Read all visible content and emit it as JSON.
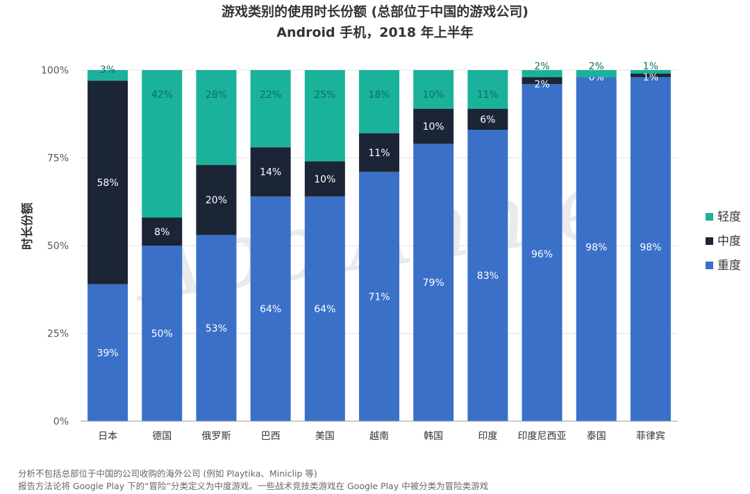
{
  "chart_data": {
    "type": "bar",
    "stacked": true,
    "title": "游戏类别的使用时长份额 (总部位于中国的游戏公司)",
    "subtitle": "Android 手机，2018 年上半年",
    "ylabel": "时长份额",
    "xlabel": "",
    "ylim": [
      0,
      100
    ],
    "yticks": [
      "0%",
      "25%",
      "50%",
      "75%",
      "100%"
    ],
    "ytick_values": [
      0,
      25,
      50,
      75,
      100
    ],
    "categories": [
      "日本",
      "德国",
      "俄罗斯",
      "巴西",
      "美国",
      "越南",
      "韩国",
      "印度",
      "印度尼西亚",
      "泰国",
      "菲律宾"
    ],
    "series": [
      {
        "name": "重度",
        "color": "#3a70c8",
        "values": [
          39,
          50,
          53,
          64,
          64,
          71,
          79,
          83,
          96,
          98,
          98
        ],
        "labels": [
          "39%",
          "50%",
          "53%",
          "64%",
          "64%",
          "71%",
          "79%",
          "83%",
          "96%",
          "98%",
          "98%"
        ]
      },
      {
        "name": "中度",
        "color": "#1b2535",
        "values": [
          58,
          8,
          20,
          14,
          10,
          11,
          10,
          6,
          2,
          0,
          1
        ],
        "labels": [
          "58%",
          "8%",
          "20%",
          "14%",
          "10%",
          "11%",
          "10%",
          "6%",
          "2%",
          "0%",
          "1%"
        ]
      },
      {
        "name": "轻度",
        "color": "#1ab29a",
        "values": [
          3,
          42,
          28,
          22,
          25,
          18,
          10,
          11,
          2,
          2,
          1
        ],
        "labels": [
          "3%",
          "42%",
          "28%",
          "22%",
          "25%",
          "18%",
          "10%",
          "11%",
          "2%",
          "2%",
          "1%"
        ]
      }
    ],
    "legend_order": [
      "轻度",
      "中度",
      "重度"
    ],
    "legend_position": "right",
    "grid": true,
    "watermark": "App Annie"
  },
  "notes": [
    "分析不包括总部位于中国的公司收购的海外公司 (例如 Playtika、Miniclip 等)",
    "报告方法论将 Google Play 下的“冒险”分类定义为中度游戏。一些战术竞技类游戏在 Google Play 中被分类为冒险类游戏"
  ]
}
